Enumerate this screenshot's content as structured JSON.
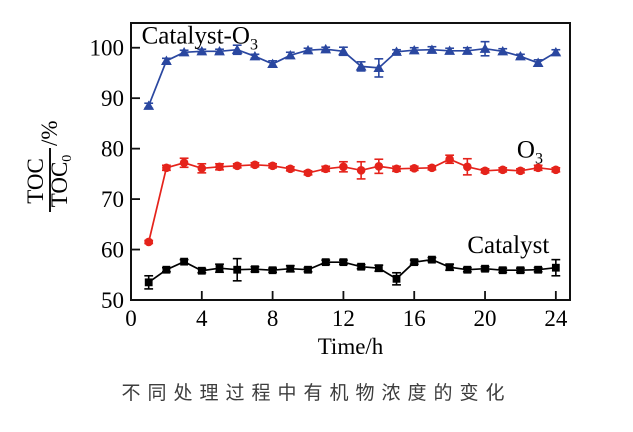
{
  "chart_data": {
    "type": "line",
    "title": "不同处理过程中有机物浓度的变化",
    "xlabel": "Time/h",
    "ylabel": {
      "numerator": "TOC",
      "denominator": "TOC",
      "denominator_sub": "0",
      "suffix": "/%"
    },
    "xlim": [
      0,
      24.8
    ],
    "ylim": [
      50,
      104.9
    ],
    "xticks": [
      0,
      4,
      8,
      12,
      16,
      20,
      24
    ],
    "yticks": [
      50,
      60,
      70,
      80,
      90,
      100
    ],
    "grid": false,
    "legend_position": "inline-annotations",
    "x": [
      1,
      2,
      3,
      4,
      5,
      6,
      7,
      8,
      9,
      10,
      11,
      12,
      13,
      14,
      15,
      16,
      17,
      18,
      19,
      20,
      21,
      22,
      23,
      24
    ],
    "series": [
      {
        "name": "Catalyst-O3",
        "color": "#2a47a0",
        "marker": "triangle",
        "values": [
          88.5,
          97.4,
          99.1,
          99.3,
          99.3,
          99.6,
          98.3,
          96.8,
          98.5,
          99.5,
          99.7,
          99.3,
          96.3,
          96.0,
          99.2,
          99.5,
          99.6,
          99.4,
          99.4,
          99.8,
          99.3,
          98.3,
          97.0,
          99.1
        ],
        "errors": [
          0.5,
          0.5,
          0.4,
          0.4,
          0.4,
          0.9,
          0.4,
          0.6,
          0.6,
          0.4,
          0.4,
          0.8,
          0.9,
          1.8,
          0.4,
          0.5,
          0.6,
          0.5,
          0.6,
          1.4,
          0.5,
          0.4,
          0.6,
          0.5
        ],
        "label": {
          "text": "Catalyst-O",
          "sub": "3",
          "x": 0.6,
          "y": 100.8,
          "color": "#000000"
        }
      },
      {
        "name": "O3",
        "color": "#e5231b",
        "marker": "circle",
        "values": [
          61.5,
          76.2,
          77.2,
          76.1,
          76.4,
          76.6,
          76.8,
          76.6,
          76.0,
          75.2,
          76.0,
          76.4,
          75.7,
          76.5,
          76.0,
          76.1,
          76.2,
          77.9,
          76.4,
          75.6,
          75.8,
          75.6,
          76.2,
          75.8
        ],
        "errors": [
          0.3,
          0.5,
          0.9,
          0.9,
          0.6,
          0.4,
          0.4,
          0.4,
          0.4,
          0.4,
          0.5,
          1.0,
          1.7,
          1.4,
          0.5,
          0.4,
          0.4,
          0.8,
          1.6,
          0.4,
          0.4,
          0.4,
          0.5,
          0.4
        ],
        "label": {
          "text": "O",
          "sub": "3",
          "x": 21.8,
          "y": 78.2,
          "color": "#000000"
        }
      },
      {
        "name": "Catalyst",
        "color": "#000000",
        "marker": "square",
        "values": [
          53.5,
          56.0,
          57.6,
          55.8,
          56.3,
          56.0,
          56.1,
          55.9,
          56.2,
          56.0,
          57.5,
          57.5,
          56.6,
          56.3,
          54.2,
          57.5,
          58.0,
          56.5,
          56.0,
          56.2,
          55.9,
          55.9,
          56.0,
          56.4
        ],
        "errors": [
          1.3,
          0.4,
          0.4,
          0.4,
          0.8,
          2.2,
          0.5,
          0.4,
          0.6,
          0.4,
          0.4,
          0.4,
          0.4,
          0.6,
          1.2,
          0.4,
          0.4,
          0.6,
          0.4,
          0.4,
          0.4,
          0.4,
          0.4,
          1.6
        ],
        "label": {
          "text": "Catalyst",
          "sub": "",
          "x": 19.0,
          "y": 59.3,
          "color": "#000000"
        }
      }
    ]
  }
}
